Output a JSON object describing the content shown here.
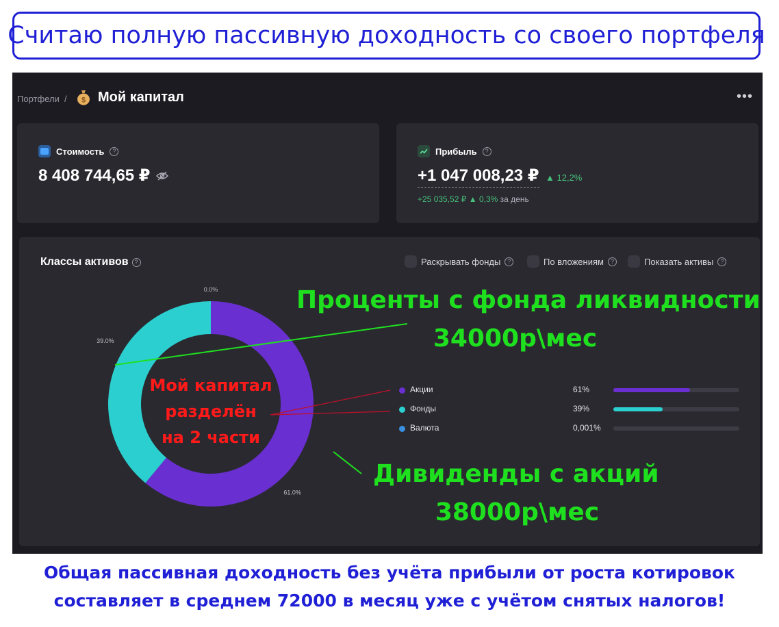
{
  "headline": "Считаю полную пассивную доходность со своего портфеля",
  "breadcrumb": {
    "parent": "Портфели",
    "separator": "/"
  },
  "page_title": "Мой капитал",
  "cards": {
    "value": {
      "label": "Стоимость",
      "amount": "8 408 744,65 ₽"
    },
    "profit": {
      "label": "Прибыль",
      "amount": "+1 047 008,23 ₽",
      "percent": "12,2%",
      "day_amount": "+25 035,52 ₽",
      "day_percent": "0,3%",
      "day_suffix": "за день"
    }
  },
  "assets": {
    "title": "Классы активов",
    "options": [
      "Раскрывать фонды",
      "По вложениям",
      "Показать активы"
    ]
  },
  "chart_data": {
    "type": "pie",
    "title": "",
    "slices": [
      {
        "name": "Акции",
        "value": 61.0,
        "label": "61.0%",
        "color": "#6a2fd0"
      },
      {
        "name": "Фонды",
        "value": 39.0,
        "label": "39.0%",
        "color": "#2ccfcf"
      },
      {
        "name": "Валюта",
        "value": 0.001,
        "label": "0.0%",
        "color": "#3b8fe0"
      }
    ],
    "legend": [
      {
        "name": "Акции",
        "percent": "61%",
        "fill": 0.61,
        "color": "#6a2fd0"
      },
      {
        "name": "Фонды",
        "percent": "39%",
        "fill": 0.39,
        "color": "#2ccfcf"
      },
      {
        "name": "Валюта",
        "percent": "0,001%",
        "fill": 0.0,
        "color": "#3b8fe0"
      }
    ],
    "legend_position": "right"
  },
  "annotations": {
    "liquidity_title": "Проценты с фонда ликвидности",
    "liquidity_amount": "34000р\\мес",
    "dividends_title": "Дивиденды с акций",
    "dividends_amount": "38000р\\мес",
    "center_line1": "Мой капитал",
    "center_line2": "разделён",
    "center_line3": "на 2 части"
  },
  "footer": {
    "line1": "Общая пассивная доходность без учёта прибыли от роста котировок",
    "line2": "составляет в среднем 72000 в месяц уже с учётом снятых налогов!"
  },
  "colors": {
    "accent_green": "#46c07a",
    "annotation_green": "#1fe01f",
    "annotation_red": "#ff1a1a",
    "headline_blue": "#1f1fd6"
  }
}
